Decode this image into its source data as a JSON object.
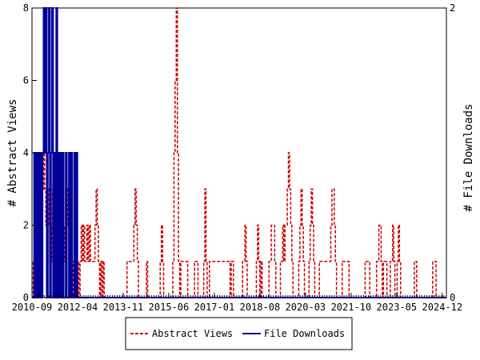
{
  "chart_data": {
    "type": "line",
    "x_tick_labels": [
      "2010-09",
      "2012-04",
      "2013-11",
      "2015-06",
      "2017-01",
      "2018-08",
      "2020-03",
      "2021-10",
      "2023-05",
      "2024-12"
    ],
    "y_left": {
      "label": "# Abstract Views",
      "ylim": [
        0,
        8
      ],
      "ticks": [
        0,
        2,
        4,
        6,
        8
      ]
    },
    "y_right": {
      "label": "# File Downloads",
      "ylim": [
        0,
        2
      ],
      "ticks": [
        0,
        2
      ]
    },
    "grid": false,
    "legend_position": "bottom-center",
    "colors": {
      "abstract": "#cc0000",
      "downloads": "#000099"
    },
    "series": [
      {
        "name": "Abstract Views",
        "axis": "left",
        "style": "dashed",
        "values": [
          0,
          1,
          2,
          2,
          2,
          2,
          2,
          1,
          2,
          3,
          4,
          3,
          2,
          1,
          2,
          3,
          2,
          1,
          3,
          2,
          3,
          2,
          3,
          4,
          2,
          3,
          3,
          2,
          1,
          2,
          3,
          2,
          3,
          1,
          2,
          1,
          0,
          1,
          1,
          0,
          1,
          0,
          1,
          2,
          1,
          2,
          1,
          1,
          2,
          1,
          2,
          1,
          1,
          1,
          1,
          2,
          3,
          2,
          1,
          0,
          1,
          0,
          1,
          0,
          0,
          0,
          0,
          0,
          0,
          0,
          0,
          0,
          0,
          0,
          0,
          0,
          0,
          0,
          0,
          0,
          0,
          0,
          0,
          1,
          1,
          1,
          1,
          1,
          1,
          2,
          3,
          2,
          1,
          0,
          0,
          0,
          0,
          0,
          0,
          0,
          1,
          0,
          0,
          0,
          0,
          0,
          0,
          0,
          0,
          0,
          0,
          0,
          1,
          2,
          1,
          0,
          0,
          0,
          0,
          0,
          0,
          0,
          0,
          1,
          4,
          6,
          8,
          4,
          1,
          0,
          1,
          1,
          1,
          1,
          1,
          1,
          0,
          0,
          0,
          0,
          0,
          0,
          1,
          1,
          1,
          0,
          0,
          0,
          0,
          0,
          1,
          3,
          1,
          0,
          0,
          1,
          1,
          1,
          1,
          1,
          1,
          1,
          1,
          1,
          1,
          1,
          1,
          1,
          1,
          1,
          1,
          1,
          1,
          0,
          1,
          1,
          0,
          0,
          0,
          0,
          0,
          0,
          0,
          0,
          1,
          1,
          2,
          1,
          0,
          0,
          0,
          0,
          0,
          0,
          0,
          0,
          1,
          2,
          1,
          0,
          1,
          0,
          0,
          0,
          0,
          0,
          0,
          1,
          1,
          2,
          2,
          2,
          1,
          0,
          0,
          0,
          0,
          1,
          1,
          2,
          1,
          2,
          2,
          3,
          4,
          3,
          2,
          1,
          0,
          0,
          0,
          0,
          0,
          1,
          2,
          3,
          2,
          1,
          0,
          0,
          0,
          0,
          1,
          2,
          3,
          2,
          1,
          0,
          0,
          0,
          0,
          1,
          1,
          1,
          1,
          1,
          1,
          1,
          1,
          1,
          1,
          2,
          3,
          3,
          2,
          1,
          0,
          0,
          0,
          0,
          0,
          1,
          1,
          1,
          1,
          1,
          1,
          0,
          0,
          0,
          0,
          0,
          0,
          0,
          0,
          0,
          0,
          0,
          0,
          0,
          0,
          1,
          1,
          1,
          1,
          0,
          0,
          0,
          0,
          0,
          0,
          1,
          1,
          2,
          2,
          1,
          0,
          1,
          1,
          1,
          0,
          0,
          0,
          1,
          1,
          2,
          1,
          0,
          0,
          1,
          2,
          1,
          0,
          0,
          0,
          0,
          0,
          0,
          0,
          0,
          0,
          0,
          0,
          0,
          1,
          1,
          0,
          0,
          0,
          0,
          0,
          0,
          0,
          0,
          0,
          0,
          0,
          0,
          0,
          0,
          1,
          1,
          1,
          0,
          0,
          0,
          0,
          0,
          0,
          0,
          0,
          0
        ]
      },
      {
        "name": "File Downloads",
        "axis": "right",
        "style": "solid",
        "values": [
          0,
          0,
          1,
          0,
          1,
          0,
          1,
          0,
          1,
          0,
          1,
          2,
          1,
          2,
          0,
          1,
          2,
          0,
          1,
          2,
          0,
          1,
          0,
          2,
          0,
          1,
          0,
          1,
          0,
          1,
          0,
          0,
          1,
          0,
          0,
          1,
          0,
          1,
          0,
          0,
          1,
          0,
          1,
          0,
          0,
          0,
          0,
          0,
          0,
          0,
          0,
          0,
          0,
          0,
          0,
          0,
          0,
          0,
          0,
          0,
          0,
          0,
          0,
          0,
          0,
          0,
          0,
          0,
          0,
          0,
          0,
          0,
          0,
          0,
          0,
          0,
          0,
          0,
          0,
          0,
          0,
          0,
          0,
          0,
          0,
          0,
          0,
          0,
          0,
          0,
          0,
          0,
          0,
          0,
          0,
          0,
          0,
          0,
          0,
          0,
          0,
          0,
          0,
          0,
          0,
          0,
          0,
          0,
          0,
          0,
          0,
          0,
          0,
          0,
          0,
          0,
          0,
          0,
          0,
          0,
          0,
          0,
          0,
          0,
          0,
          0,
          0,
          0,
          0,
          0,
          0,
          0,
          0,
          0,
          0,
          0,
          0,
          0,
          0,
          0,
          0,
          0,
          0,
          0,
          0,
          0,
          0,
          0,
          0,
          0,
          0,
          0,
          0,
          0,
          0,
          0,
          0,
          0,
          0,
          0,
          0,
          0,
          0,
          0,
          0,
          0,
          0,
          0,
          0,
          0,
          0,
          0,
          0,
          0,
          0,
          0,
          0,
          0,
          0,
          0,
          0,
          0,
          0,
          0,
          0,
          0,
          0,
          0,
          0,
          0,
          0,
          0,
          0,
          0,
          0,
          0,
          0,
          0,
          0,
          0,
          0,
          0,
          0,
          0,
          0,
          0,
          0,
          0,
          0,
          0,
          0,
          0,
          0,
          0,
          0,
          0,
          0,
          0,
          0,
          0,
          0,
          0,
          0,
          0,
          0,
          0,
          0,
          0,
          0,
          0,
          0,
          0,
          0,
          0,
          0,
          0,
          0,
          0,
          0,
          0,
          0,
          0,
          0,
          0,
          0,
          0,
          0,
          0,
          0,
          0,
          0,
          0,
          0,
          0,
          0,
          0,
          0,
          0,
          0,
          0,
          0,
          0,
          0,
          0,
          0,
          0,
          0,
          0,
          0,
          0,
          0,
          0,
          0,
          0,
          0,
          0,
          0,
          0,
          0,
          0,
          0,
          0,
          0,
          0,
          0,
          0,
          0,
          0,
          0,
          0,
          0,
          0,
          0,
          0,
          0,
          0,
          0,
          0,
          0,
          0,
          0,
          0,
          0,
          0,
          0,
          0,
          0,
          0,
          0,
          0,
          0,
          0,
          0,
          0,
          0,
          0,
          0,
          0,
          0,
          0,
          0,
          0,
          0,
          0,
          0,
          0,
          0,
          0,
          0,
          0,
          0,
          0,
          0,
          0,
          0,
          0,
          0,
          0,
          0,
          0,
          0,
          0,
          0,
          0,
          0,
          0,
          0,
          0,
          0,
          0,
          0,
          0,
          0,
          0,
          0,
          0,
          0,
          0,
          0,
          0,
          0,
          0,
          0,
          0,
          0,
          0,
          0,
          0,
          0,
          0,
          0,
          0,
          0,
          0,
          0,
          0,
          0,
          0,
          0,
          0,
          0,
          0,
          0,
          0,
          0,
          0,
          0,
          0,
          0,
          0,
          0,
          0,
          0
        ]
      }
    ]
  }
}
